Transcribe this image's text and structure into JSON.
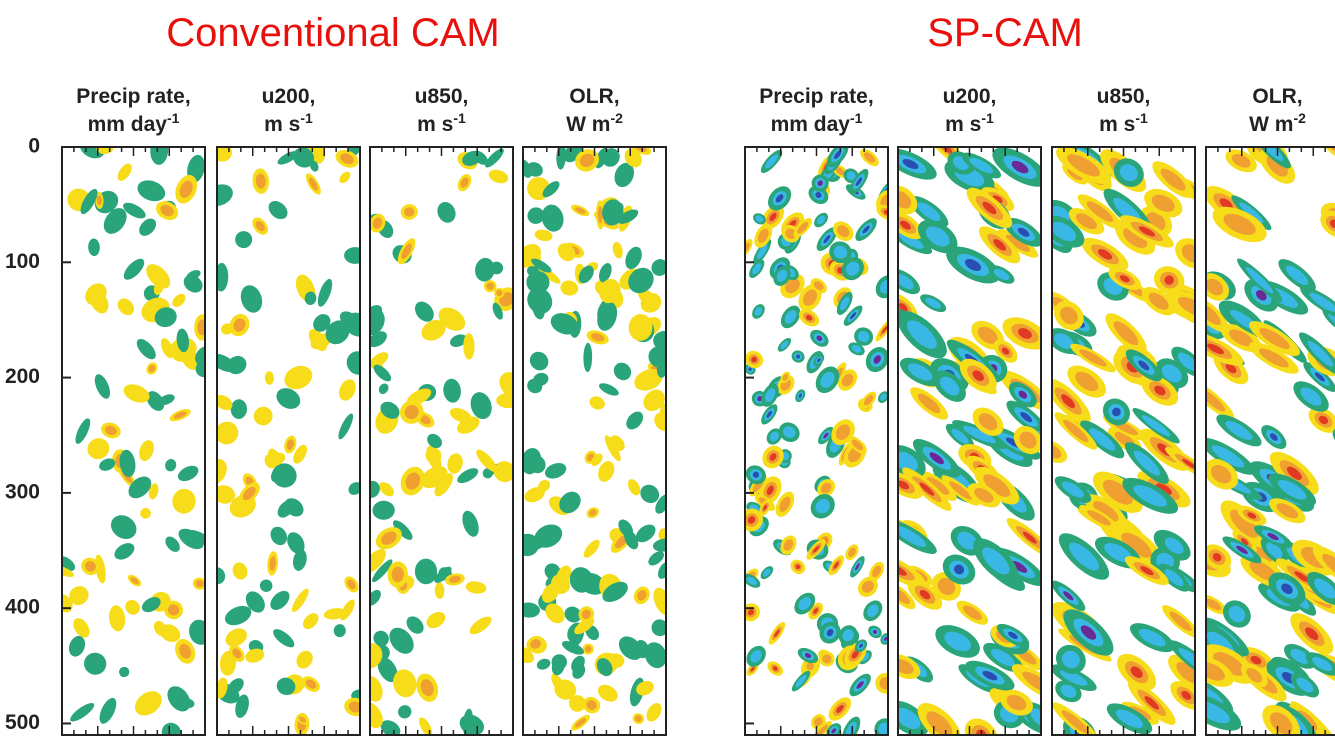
{
  "groups": [
    {
      "title": "Conventional CAM",
      "panels": [
        {
          "name": "Precip rate,",
          "unit": "mm day",
          "exponent": "-1"
        },
        {
          "name": "u200,",
          "unit": "m s",
          "exponent": "-1"
        },
        {
          "name": "u850,",
          "unit": "m s",
          "exponent": "-1"
        },
        {
          "name": "OLR,",
          "unit": "W m",
          "exponent": "-2"
        }
      ]
    },
    {
      "title": "SP-CAM",
      "panels": [
        {
          "name": "Precip rate,",
          "unit": "mm day",
          "exponent": "-1"
        },
        {
          "name": "u200,",
          "unit": "m s",
          "exponent": "-1"
        },
        {
          "name": "u850,",
          "unit": "m s",
          "exponent": "-1"
        },
        {
          "name": "OLR,",
          "unit": "W m",
          "exponent": "-2"
        }
      ]
    }
  ],
  "y_axis": {
    "ylim": [
      0,
      510
    ],
    "yticks": [
      0,
      100,
      200,
      300,
      400,
      500
    ]
  }
}
